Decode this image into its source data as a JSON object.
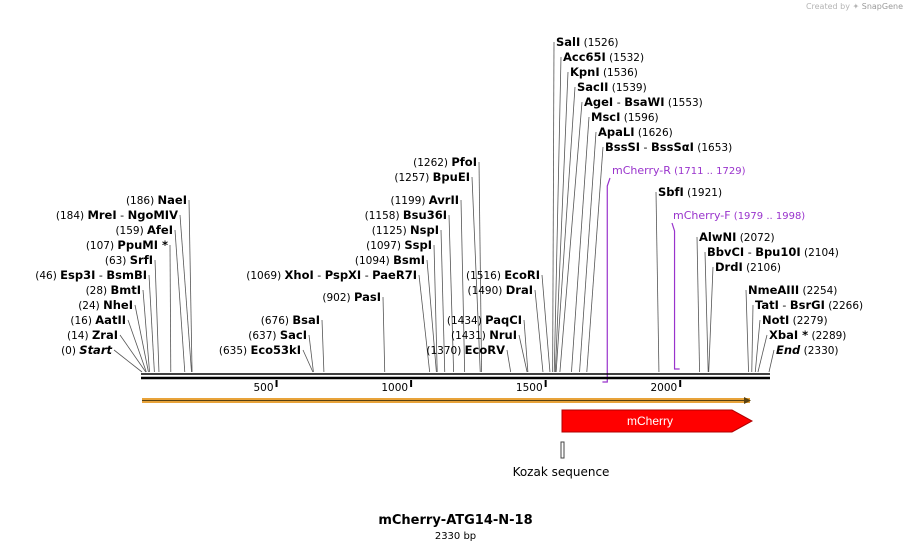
{
  "app": {
    "credit_prefix": "Created by",
    "credit_brand": "SnapGene"
  },
  "plasmid": {
    "name": "mCherry-ATG14-N-18",
    "length_label": "2330 bp",
    "length": 2330
  },
  "colors": {
    "enzyme_line": "#555555",
    "primer": "#9933cc",
    "feature_red": "#ff0000",
    "vector_orange": "#e8a33a",
    "backbone": "#000000"
  },
  "enzymes_left": [
    {
      "pos": "(0)",
      "name": "Start",
      "italic": true
    },
    {
      "pos": "(14)",
      "name": "ZraI"
    },
    {
      "pos": "(16)",
      "name": "AatII"
    },
    {
      "pos": "(24)",
      "name": "NheI"
    },
    {
      "pos": "(28)",
      "name": "BmtI"
    },
    {
      "pos": "(46)",
      "name": "Esp3I",
      "partner": "BsmBI"
    },
    {
      "pos": "(63)",
      "name": "SrfI"
    },
    {
      "pos": "(107)",
      "name": "PpuMI *"
    },
    {
      "pos": "(159)",
      "name": "AfeI"
    },
    {
      "pos": "(184)",
      "name": "MreI",
      "partner": "NgoMIV"
    },
    {
      "pos": "(186)",
      "name": "NaeI"
    },
    {
      "pos": "(635)",
      "name": "Eco53kI"
    },
    {
      "pos": "(637)",
      "name": "SacI"
    },
    {
      "pos": "(676)",
      "name": "BsaI"
    },
    {
      "pos": "(902)",
      "name": "PasI"
    },
    {
      "pos": "(1069)",
      "name": "XhoI",
      "partner": "PspXI",
      "partner2": "PaeR7I"
    },
    {
      "pos": "(1094)",
      "name": "BsmI"
    },
    {
      "pos": "(1097)",
      "name": "SspI"
    },
    {
      "pos": "(1125)",
      "name": "NspI"
    },
    {
      "pos": "(1158)",
      "name": "Bsu36I"
    },
    {
      "pos": "(1199)",
      "name": "AvrII"
    },
    {
      "pos": "(1257)",
      "name": "BpuEI"
    },
    {
      "pos": "(1262)",
      "name": "PfoI"
    },
    {
      "pos": "(1370)",
      "name": "EcoRV"
    },
    {
      "pos": "(1431)",
      "name": "NruI"
    },
    {
      "pos": "(1434)",
      "name": "PaqCI"
    },
    {
      "pos": "(1490)",
      "name": "DraI"
    },
    {
      "pos": "(1516)",
      "name": "EcoRI"
    }
  ],
  "enzymes_right": [
    {
      "name": "SalI",
      "pos": "(1526)"
    },
    {
      "name": "Acc65I",
      "pos": "(1532)"
    },
    {
      "name": "KpnI",
      "pos": "(1536)"
    },
    {
      "name": "SacII",
      "pos": "(1539)"
    },
    {
      "name": "AgeI",
      "partner": "BsaWI",
      "pos": "(1553)"
    },
    {
      "name": "MscI",
      "pos": "(1596)"
    },
    {
      "name": "ApaLI",
      "pos": "(1626)"
    },
    {
      "name": "BssSI",
      "partner": "BssSαI",
      "pos": "(1653)"
    },
    {
      "name": "SbfI",
      "pos": "(1921)"
    },
    {
      "name": "AlwNI",
      "pos": "(2072)"
    },
    {
      "name": "BbvCI",
      "partner": "Bpu10I",
      "pos": "(2104)"
    },
    {
      "name": "DrdI",
      "pos": "(2106)"
    },
    {
      "name": "NmeAIII",
      "pos": "(2254)"
    },
    {
      "name": "TatI",
      "partner": "BsrGI",
      "pos": "(2266)"
    },
    {
      "name": "NotI",
      "pos": "(2279)"
    },
    {
      "name": "XbaI *",
      "pos": "(2289)"
    },
    {
      "name": "End",
      "italic": true,
      "pos": "(2330)"
    }
  ],
  "primers": [
    {
      "name": "mCherry-R",
      "range": "(1711 .. 1729)"
    },
    {
      "name": "mCherry-F",
      "range": "(1979 .. 1998)"
    }
  ],
  "ruler": {
    "ticks": [
      500,
      1000,
      1500,
      2000
    ]
  },
  "features": {
    "mcherry": {
      "label": "mCherry",
      "start": 1574,
      "end": 2282
    },
    "kozak": {
      "label": "Kozak sequence",
      "start": 1568,
      "end": 1574
    },
    "vector_bar": {
      "start": 0,
      "end": 2280
    }
  }
}
